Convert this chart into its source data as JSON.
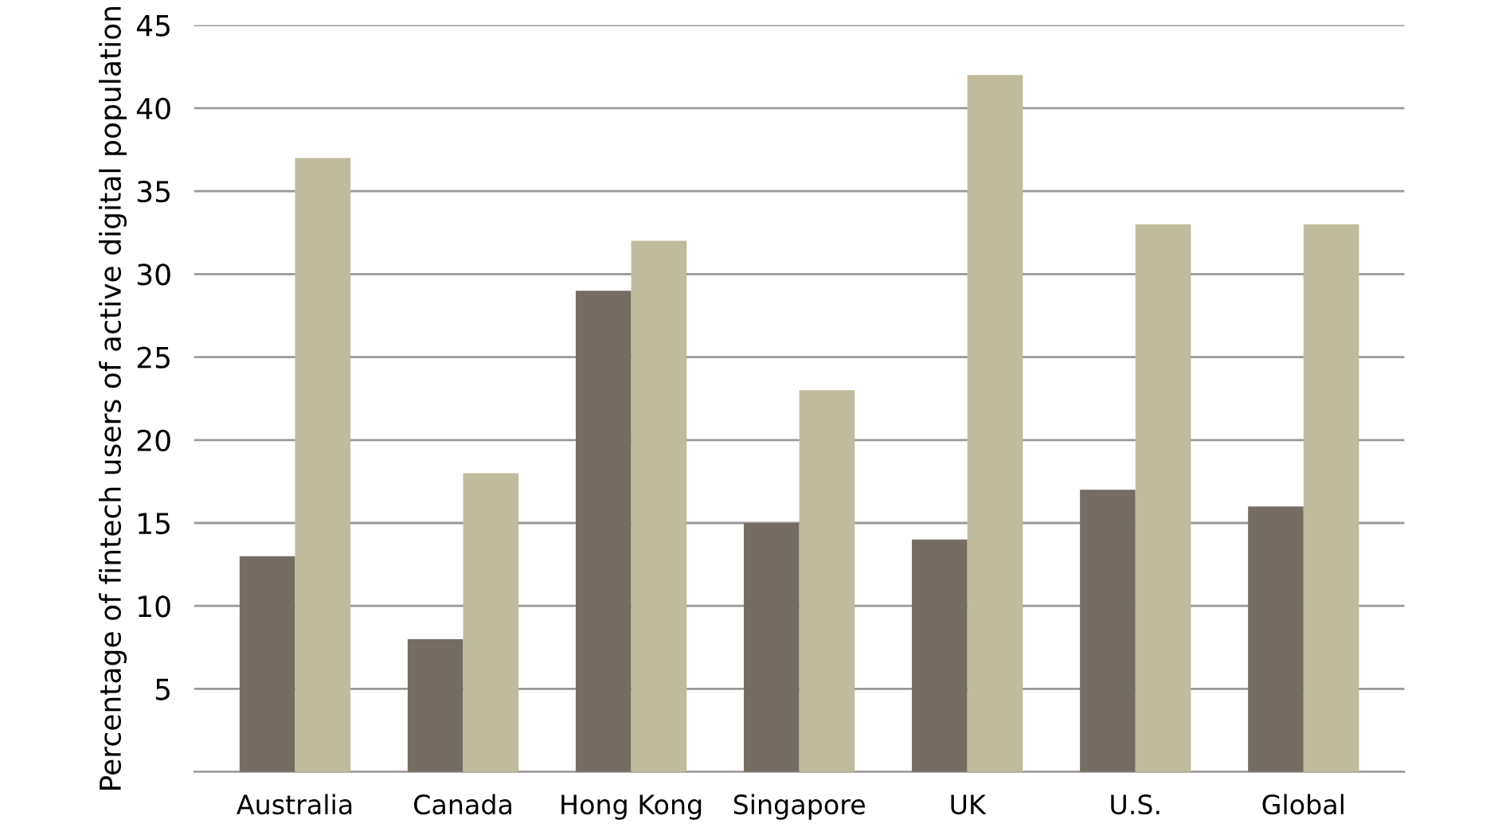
{
  "chart_data": {
    "type": "bar",
    "ylabel": "Percentage of fintech users of active digital population",
    "categories": [
      "Australia",
      "Canada",
      "Hong Kong",
      "Singapore",
      "UK",
      "U.S.",
      "Global"
    ],
    "series": [
      {
        "color": "#756d64",
        "values": [
          13,
          8,
          29,
          15,
          14,
          17,
          16
        ]
      },
      {
        "color": "#bfbb9c",
        "values": [
          37,
          18,
          32,
          23,
          42,
          33,
          33
        ]
      }
    ],
    "ylim": [
      0,
      45
    ],
    "yticks": [
      {
        "value": 0,
        "label": null
      },
      5,
      10,
      15,
      20,
      25,
      30,
      35,
      40,
      45
    ],
    "grid": "y"
  }
}
